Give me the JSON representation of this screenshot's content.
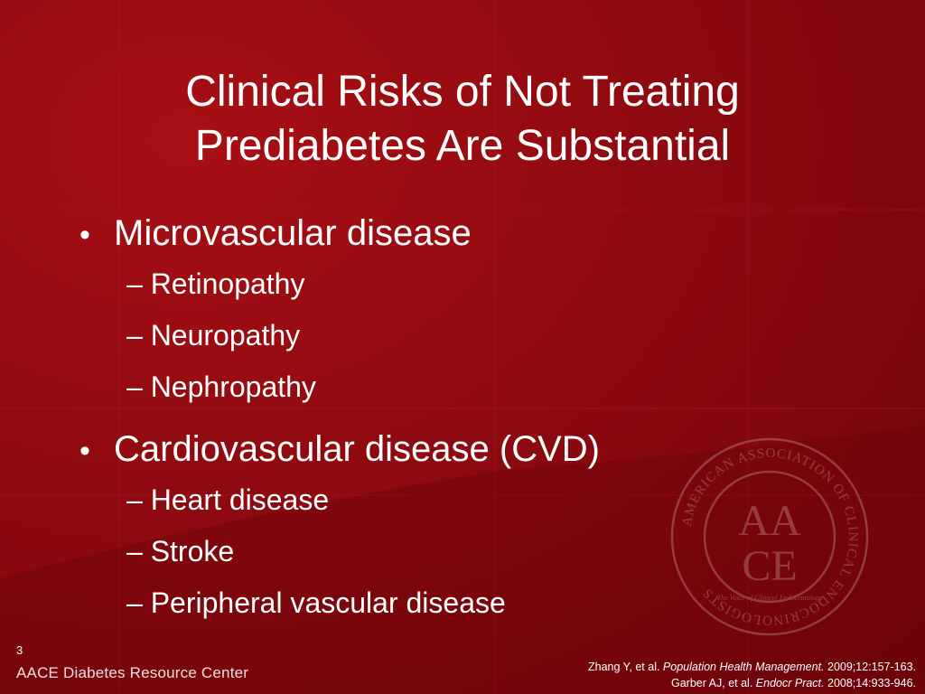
{
  "slide": {
    "title_line1": "Clinical Risks of Not Treating",
    "title_line2": "Prediabetes Are Substantial",
    "bullets": [
      {
        "label": "Microvascular disease",
        "subitems": [
          "– Retinopathy",
          "– Neuropathy",
          "– Nephropathy"
        ]
      },
      {
        "label": "Cardiovascular disease (CVD)",
        "subitems": [
          "– Heart disease",
          "– Stroke",
          "– Peripheral vascular disease"
        ]
      }
    ],
    "bullet_glyph": "•",
    "slide_number": "3",
    "footer_brand": "AACE Diabetes Resource Center"
  },
  "references": [
    {
      "pre": "Zhang Y, et al. ",
      "journal": "Population Health Management.",
      "post": " 2009;12:157-163."
    },
    {
      "pre": "Garber AJ, et al. ",
      "journal": "Endocr Pract.",
      "post": " 2008;14:933-946."
    }
  ],
  "seal": {
    "ring_text": "AMERICAN ASSOCIATION OF CLINICAL ENDOCRINOLOGISTS",
    "letters_top": "AACE",
    "motto": "The Voice of Clinical Endocrinology"
  },
  "colors": {
    "background": "#8e0a10",
    "text": "#ffffff"
  }
}
